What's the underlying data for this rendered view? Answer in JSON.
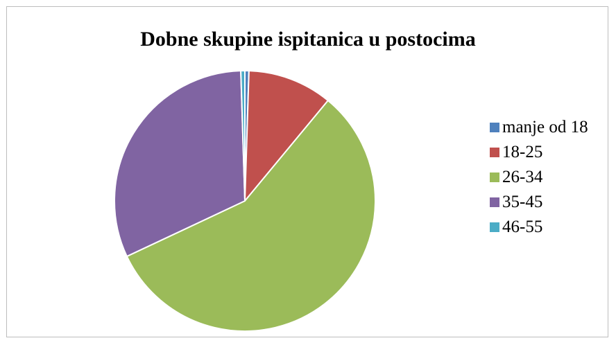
{
  "chart_data": {
    "type": "pie",
    "title": "Dobne skupine ispitanica u postocima",
    "legend_position": "right",
    "slices": [
      {
        "label": "manje od 18",
        "value": 0.5,
        "color": "#4F81BD"
      },
      {
        "label": "18-25",
        "value": 10.5,
        "color": "#C0504D"
      },
      {
        "label": "26-34",
        "value": 57.0,
        "color": "#9BBB59"
      },
      {
        "label": "35-45",
        "value": 31.5,
        "color": "#8064A2"
      },
      {
        "label": "46-55",
        "value": 0.5,
        "color": "#4BACC6"
      }
    ]
  }
}
